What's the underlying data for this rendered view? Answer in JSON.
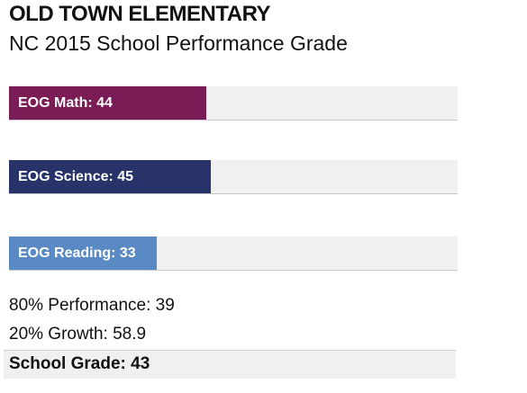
{
  "title": "OLD TOWN ELEMENTARY",
  "subtitle": "NC 2015 School Performance Grade",
  "chart_data": {
    "type": "bar",
    "orientation": "horizontal",
    "categories": [
      "EOG  Math",
      "EOG Science",
      "EOG Reading"
    ],
    "values": [
      44,
      45,
      33
    ],
    "bar_labels": [
      "EOG  Math: 44",
      "EOG Science: 45",
      "EOG Reading: 33"
    ],
    "colors": [
      "#7a1c55",
      "#283369",
      "#5a8ac4"
    ],
    "xlim": [
      0,
      100
    ],
    "grid": false
  },
  "stats": {
    "performance": "80% Performance: 39",
    "growth": "20% Growth: 58.9",
    "school_grade": "School Grade: 43"
  }
}
